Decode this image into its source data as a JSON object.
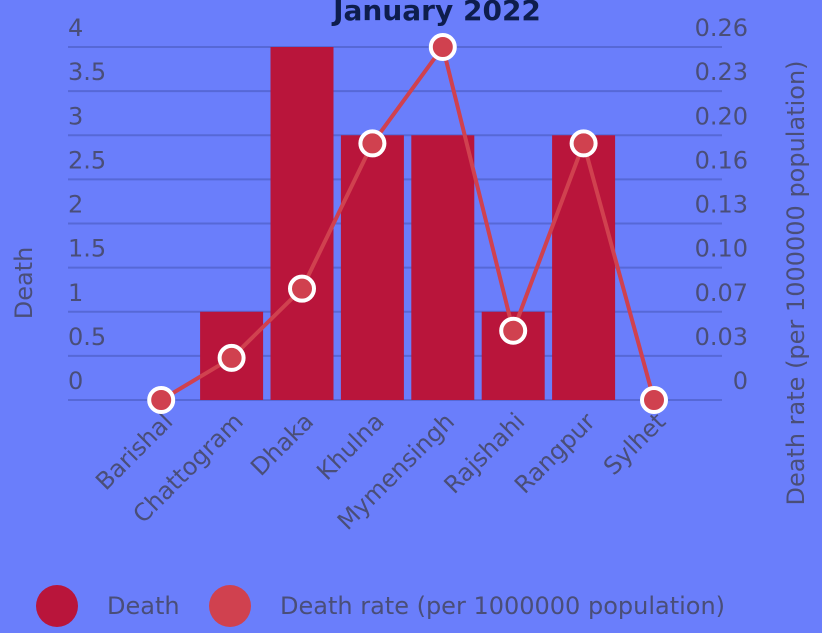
{
  "chart_data": {
    "type": "bar_line",
    "title": "January 2022",
    "y_label": "Death",
    "y2_label": "Death rate (per 1000000 population)",
    "categories": [
      "Barishal",
      "Chattogram",
      "Dhaka",
      "Khulna",
      "Mymensingh",
      "Rajshahi",
      "Rangpur",
      "Sylhet"
    ],
    "series": [
      {
        "name": "Death",
        "type": "bar",
        "color": "#b9153b",
        "values": [
          0,
          1,
          4,
          3,
          3,
          1,
          3,
          0
        ]
      },
      {
        "name": "Death rate (per 1000000 population)",
        "type": "line",
        "axis": "y2",
        "color": "#d0414f",
        "values": [
          0,
          0.031,
          0.082,
          0.189,
          0.26,
          0.051,
          0.189,
          0
        ]
      }
    ],
    "ylim": [
      0,
      4
    ],
    "yticks": [
      0,
      0.5,
      1,
      1.5,
      2,
      2.5,
      3,
      3.5,
      4
    ],
    "y2lim": [
      0,
      0.26
    ],
    "y2ticks": [
      0,
      {
        "value": 0.0325,
        "label": "0.03"
      },
      {
        "value": 0.065,
        "label": "0.07"
      },
      {
        "value": 0.0975,
        "label": "0.10"
      },
      0.13,
      {
        "value": 0.1625,
        "label": "0.16"
      },
      {
        "value": 0.195,
        "label": "0.20"
      },
      {
        "value": 0.2275,
        "label": "0.23"
      },
      0.26
    ],
    "grid": true,
    "legend": "bottom"
  }
}
